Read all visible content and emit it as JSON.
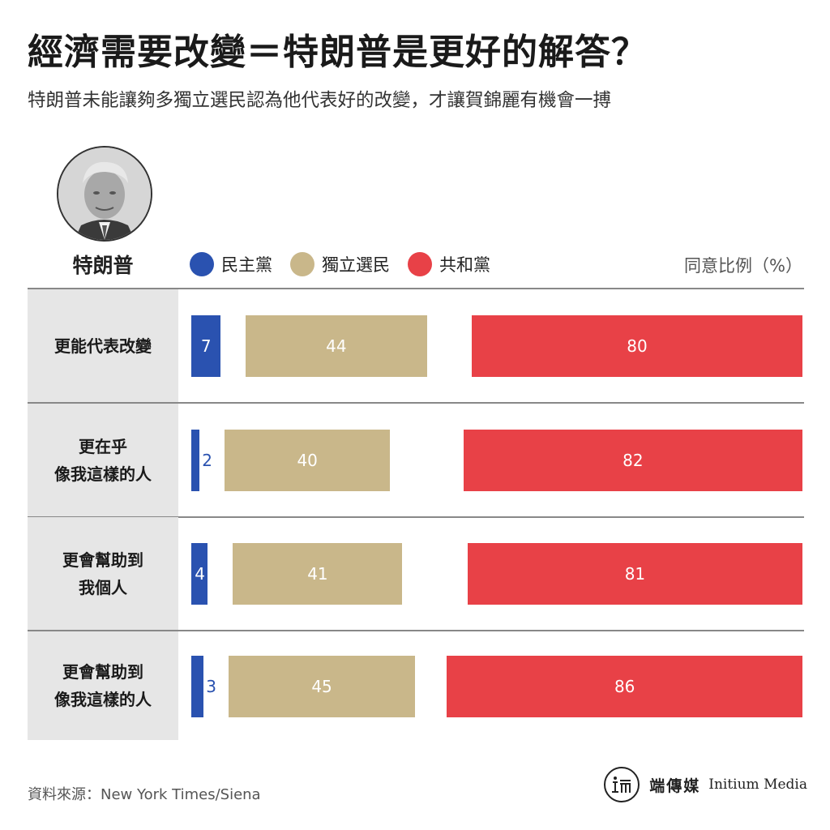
{
  "title": "經濟需要改變＝特朗普是更好的解答？",
  "subtitle": "特朗普未能讓夠多獨立選民認為他代表好的改變，才讓賀錦麗有機會一搏",
  "person": {
    "name": "特朗普",
    "photo": "trump-portrait"
  },
  "legend": {
    "democrat": "民主黨",
    "independent": "獨立選民",
    "republican": "共和黨",
    "unit": "同意比例（%）"
  },
  "colors": {
    "democrat": "#2a52b0",
    "independent": "#c9b78a",
    "republican": "#e84147"
  },
  "chart_data": {
    "type": "bar",
    "categories": [
      "更能代表改變",
      "更在乎\n像我這樣的人",
      "更會幫助到\n我個人",
      "更會幫助到\n像我這樣的人"
    ],
    "series": [
      {
        "name": "民主黨",
        "values": [
          7,
          2,
          4,
          3
        ]
      },
      {
        "name": "獨立選民",
        "values": [
          44,
          40,
          41,
          45
        ]
      },
      {
        "name": "共和黨",
        "values": [
          80,
          82,
          81,
          86
        ]
      }
    ]
  },
  "footer": {
    "source": "資料來源：New York Times/Siena",
    "brand_cn": "端傳媒",
    "brand_en": "Initium Media"
  }
}
